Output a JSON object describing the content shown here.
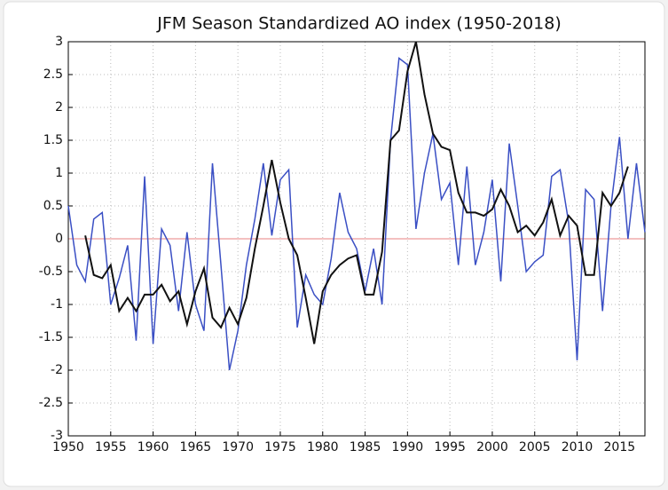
{
  "chart_data": {
    "type": "line",
    "title": "JFM Season Standardized AO index (1950-2018)",
    "x": [
      1950,
      1951,
      1952,
      1953,
      1954,
      1955,
      1956,
      1957,
      1958,
      1959,
      1960,
      1961,
      1962,
      1963,
      1964,
      1965,
      1966,
      1967,
      1968,
      1969,
      1970,
      1971,
      1972,
      1973,
      1974,
      1975,
      1976,
      1977,
      1978,
      1979,
      1980,
      1981,
      1982,
      1983,
      1984,
      1985,
      1986,
      1987,
      1988,
      1989,
      1990,
      1991,
      1992,
      1993,
      1994,
      1995,
      1996,
      1997,
      1998,
      1999,
      2000,
      2001,
      2002,
      2003,
      2004,
      2005,
      2006,
      2007,
      2008,
      2009,
      2010,
      2011,
      2012,
      2013,
      2014,
      2015,
      2016,
      2017,
      2018
    ],
    "series": [
      {
        "color": "#3a4fc4",
        "values": [
          0.5,
          -0.4,
          -0.65,
          0.3,
          0.4,
          -1.0,
          -0.6,
          -0.1,
          -1.55,
          0.95,
          -1.6,
          0.15,
          -0.1,
          -1.1,
          0.1,
          -1.0,
          -1.4,
          1.15,
          -0.4,
          -2.0,
          -1.4,
          -0.4,
          0.3,
          1.15,
          0.05,
          0.9,
          1.05,
          -1.35,
          -0.55,
          -0.85,
          -1.0,
          -0.3,
          0.7,
          0.1,
          -0.15,
          -0.8,
          -0.15,
          -1.0,
          1.5,
          2.75,
          2.65,
          0.15,
          1.0,
          1.6,
          0.6,
          0.85,
          -0.4,
          1.1,
          -0.4,
          0.1,
          0.9,
          -0.65,
          1.45,
          0.5,
          -0.5,
          -0.35,
          -0.25,
          0.95,
          1.05,
          0.25,
          -1.85,
          0.75,
          0.6,
          -1.1,
          0.5,
          1.55,
          0.0,
          1.15,
          0.1
        ]
      },
      {
        "color": "#111111",
        "values": [
          null,
          null,
          0.05,
          -0.55,
          -0.6,
          -0.4,
          -1.1,
          -0.9,
          -1.1,
          -0.85,
          -0.85,
          -0.7,
          -0.95,
          -0.8,
          -1.3,
          -0.8,
          -0.45,
          -1.2,
          -1.35,
          -1.05,
          -1.3,
          -0.9,
          -0.15,
          0.5,
          1.2,
          0.55,
          0.0,
          -0.25,
          -0.9,
          -1.6,
          -0.8,
          -0.55,
          -0.4,
          -0.3,
          -0.25,
          -0.85,
          -0.85,
          -0.2,
          1.5,
          1.65,
          2.55,
          3.0,
          2.2,
          1.6,
          1.4,
          1.35,
          0.7,
          0.4,
          0.4,
          0.35,
          0.45,
          0.75,
          0.5,
          0.1,
          0.2,
          0.05,
          0.25,
          0.6,
          0.05,
          0.35,
          0.2,
          -0.55,
          -0.55,
          0.7,
          0.5,
          0.7,
          1.1,
          null,
          null
        ]
      }
    ],
    "xlim": [
      1950,
      2018
    ],
    "xticks": [
      1950,
      1955,
      1960,
      1965,
      1970,
      1975,
      1980,
      1985,
      1990,
      1995,
      2000,
      2005,
      2010,
      2015
    ],
    "ylim": [
      -3,
      3
    ],
    "yticks": [
      -3,
      -2.5,
      -2,
      -1.5,
      -1,
      -0.5,
      0,
      0.5,
      1,
      1.5,
      2,
      2.5,
      3
    ],
    "grid": true,
    "zero_line_color": "#e88080"
  }
}
